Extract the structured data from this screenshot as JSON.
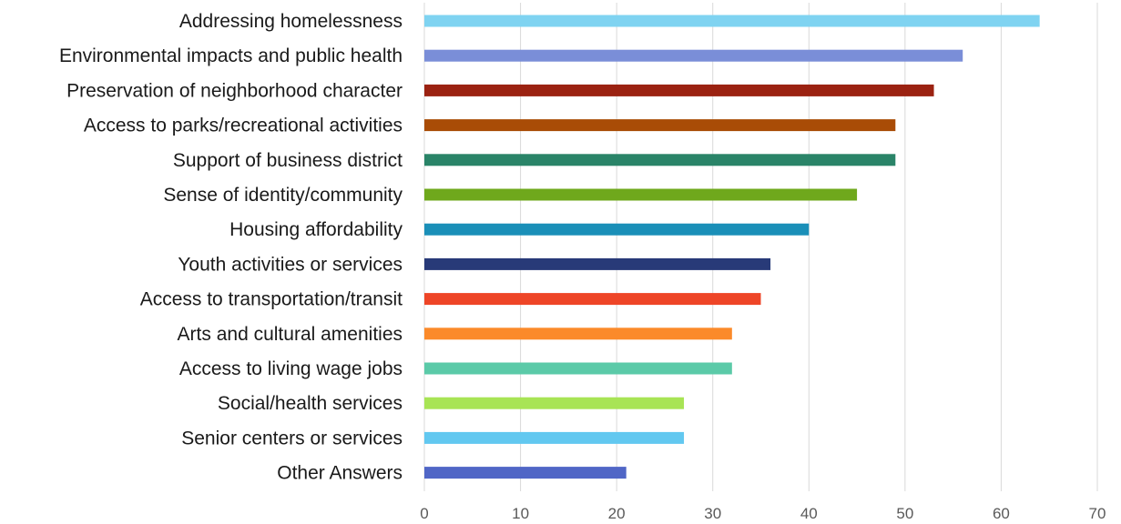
{
  "chart_data": {
    "type": "bar",
    "orientation": "horizontal",
    "title": "",
    "xlabel": "",
    "ylabel": "",
    "xlim": [
      0,
      70
    ],
    "x_ticks": [
      0,
      10,
      20,
      30,
      40,
      50,
      60,
      70
    ],
    "grid": "vertical",
    "legend": "none",
    "categories": [
      "Addressing homelessness",
      "Environmental impacts and public health",
      "Preservation of neighborhood character",
      "Access to parks/recreational activities",
      "Support of business district",
      "Sense of identity/community",
      "Housing affordability",
      "Youth activities or services",
      "Access to transportation/transit",
      "Arts and cultural amenities",
      "Access to living wage jobs",
      "Social/health services",
      "Senior centers or services",
      "Other Answers"
    ],
    "values": [
      64,
      56,
      53,
      49,
      49,
      45,
      40,
      36,
      35,
      32,
      32,
      27,
      27,
      21
    ],
    "colors": [
      "#7fd3f1",
      "#7a8ed8",
      "#9b2211",
      "#a94c06",
      "#2a8468",
      "#6fa81c",
      "#1a8fb8",
      "#283a78",
      "#ee4527",
      "#fb8a2a",
      "#5bcaa8",
      "#a8e455",
      "#62c8f0",
      "#5066c6"
    ]
  }
}
